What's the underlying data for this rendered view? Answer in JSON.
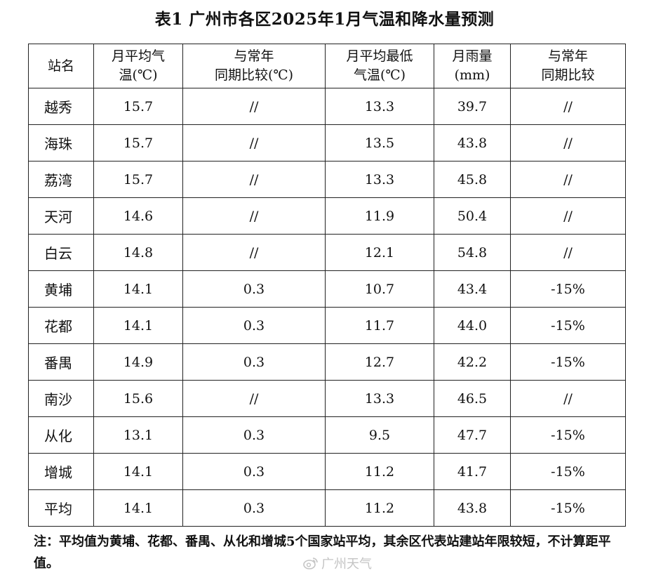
{
  "title": "表1 广州市各区2025年1月气温和降水量预测",
  "headers": [
    "站名",
    "月平均气\n温(℃)",
    "与常年\n同期比较(℃)",
    "月平均最低\n气温(℃)",
    "月雨量\n(mm)",
    "与常年\n同期比较"
  ],
  "rows": [
    [
      "越秀",
      "15.7",
      "//",
      "13.3",
      "39.7",
      "//"
    ],
    [
      "海珠",
      "15.7",
      "//",
      "13.5",
      "43.8",
      "//"
    ],
    [
      "荔湾",
      "15.7",
      "//",
      "13.3",
      "45.8",
      "//"
    ],
    [
      "天河",
      "14.6",
      "//",
      "11.9",
      "50.4",
      "//"
    ],
    [
      "白云",
      "14.8",
      "//",
      "12.1",
      "54.8",
      "//"
    ],
    [
      "黄埔",
      "14.1",
      "0.3",
      "10.7",
      "43.4",
      "-15%"
    ],
    [
      "花都",
      "14.1",
      "0.3",
      "11.7",
      "44.0",
      "-15%"
    ],
    [
      "番禺",
      "14.9",
      "0.3",
      "12.7",
      "42.2",
      "-15%"
    ],
    [
      "南沙",
      "15.6",
      "//",
      "13.3",
      "46.5",
      "//"
    ],
    [
      "从化",
      "13.1",
      "0.3",
      "9.5",
      "47.7",
      "-15%"
    ],
    [
      "增城",
      "14.1",
      "0.3",
      "11.2",
      "41.7",
      "-15%"
    ],
    [
      "平均",
      "14.1",
      "0.3",
      "11.2",
      "43.8",
      "-15%"
    ]
  ],
  "note": "注：平均值为黄埔、花都、番禺、从化和增城5个国家站平均，其余区代表站建站年限较短，不计算距平值。",
  "watermark": {
    "text": "广州天气",
    "icon": "weibo-logo-icon",
    "color": "#c4c4c4"
  }
}
